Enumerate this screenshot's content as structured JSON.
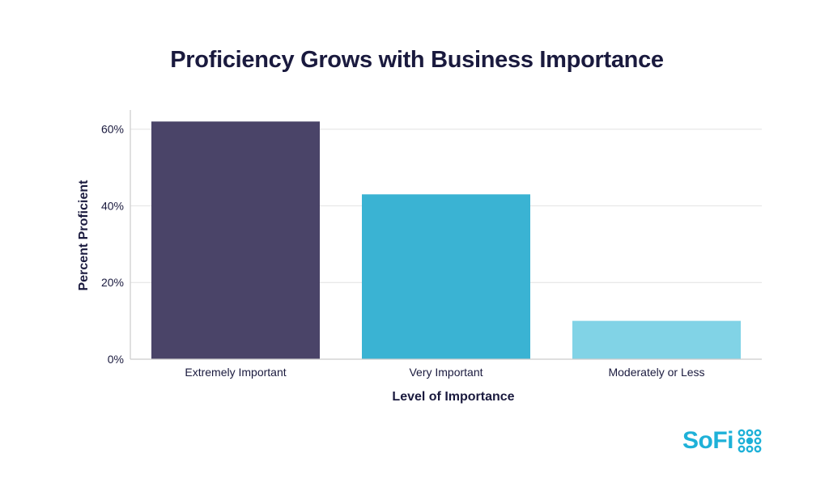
{
  "chart_data": {
    "type": "bar",
    "title": "Proficiency Grows with Business Importance",
    "xlabel": "Level of Importance",
    "ylabel": "Percent Proficient",
    "categories": [
      "Extremely Important",
      "Very Important",
      "Moderately or Less"
    ],
    "values": [
      62,
      43,
      10
    ],
    "bar_colors": [
      "#4a4468",
      "#3ab3d3",
      "#81d3e6"
    ],
    "ylim": [
      0,
      65
    ],
    "yticks": [
      0,
      20,
      40,
      60
    ],
    "ytick_labels": [
      "0%",
      "20%",
      "40%",
      "60%"
    ],
    "grid": true
  },
  "brand": {
    "name": "SoFi",
    "color": "#1eb1d8"
  }
}
